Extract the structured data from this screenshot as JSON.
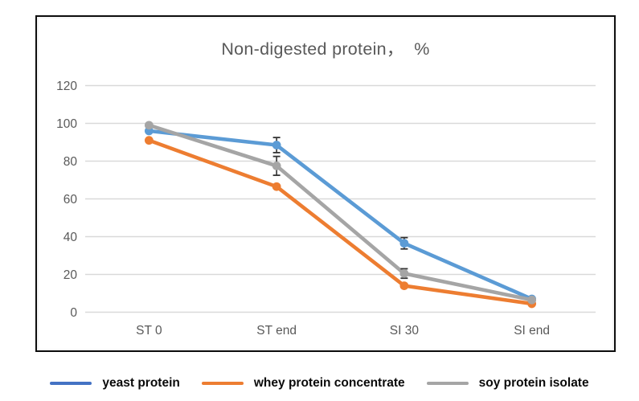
{
  "chart_data": {
    "type": "line",
    "title": "Non-digested protein，  %",
    "categories": [
      "ST 0",
      "ST end",
      "SI 30",
      "SI end"
    ],
    "series": [
      {
        "name": "yeast protein",
        "values": [
          96,
          88.5,
          36.5,
          7
        ],
        "errors": [
          null,
          4,
          3,
          null
        ],
        "color": "#5B9BD5",
        "legend_color": "#4472C4"
      },
      {
        "name": "whey protein concentrate",
        "values": [
          91,
          66.5,
          14,
          4.5
        ],
        "errors": [
          null,
          null,
          null,
          null
        ],
        "color": "#ED7D31",
        "legend_color": "#ED7D31"
      },
      {
        "name": "soy protein isolate",
        "values": [
          99,
          77.5,
          20.5,
          6.5
        ],
        "errors": [
          null,
          5,
          2.5,
          null
        ],
        "color": "#A5A5A5",
        "legend_color": "#A5A5A5"
      }
    ],
    "ylim": [
      0,
      120
    ],
    "yticks": [
      0,
      20,
      40,
      60,
      80,
      100,
      120
    ],
    "xlabel": "",
    "ylabel": "",
    "grid": true,
    "legend_position": "bottom"
  },
  "style": {
    "grid_color": "#D9D9D9",
    "axis_text_color": "#595959",
    "title_color": "#595959",
    "error_bar_color": "#333333",
    "frame_border_color": "#0d0d0d",
    "legend_text_color": "#0a0a0a",
    "background_color": "#FFFFFF"
  }
}
